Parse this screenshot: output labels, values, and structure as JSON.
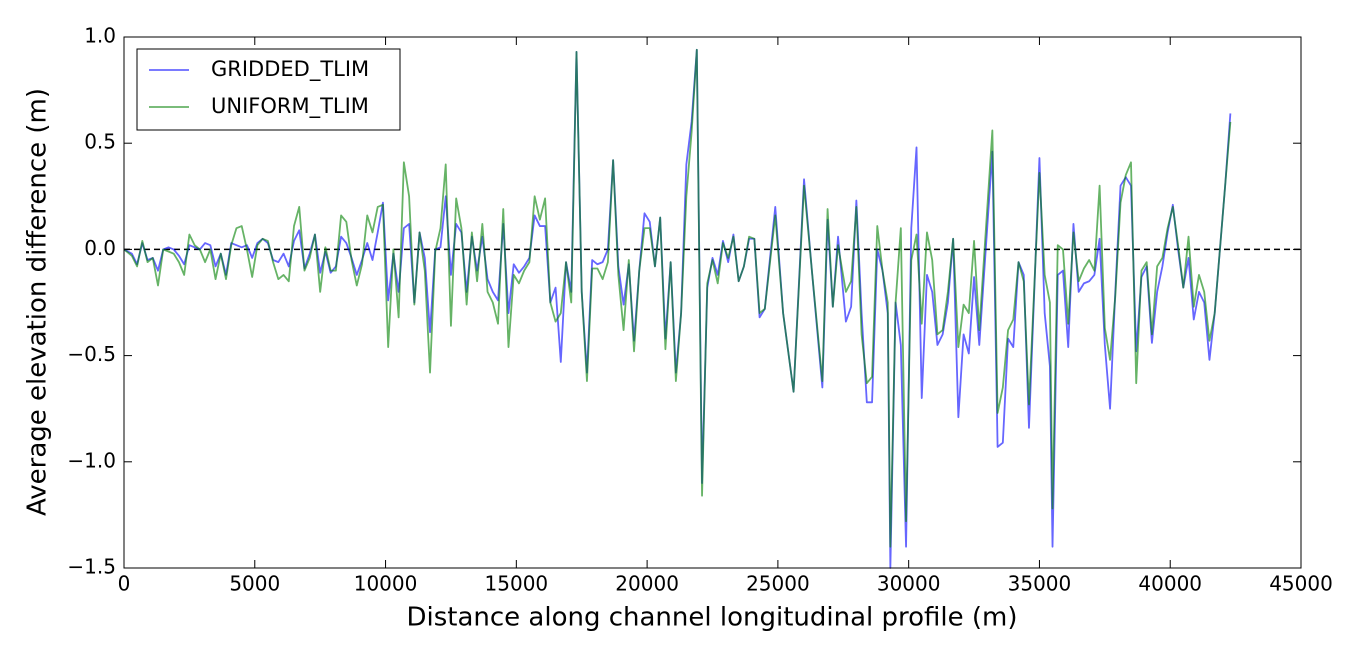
{
  "chart_data": {
    "type": "line",
    "xlabel": "Distance along channel longitudinal profile (m)",
    "ylabel": "Average elevation difference (m)",
    "x": [
      0,
      300,
      500,
      700,
      900,
      1100,
      1300,
      1500,
      1700,
      1900,
      2100,
      2300,
      2500,
      2700,
      2900,
      3100,
      3300,
      3500,
      3700,
      3900,
      4100,
      4300,
      4500,
      4700,
      4900,
      5100,
      5300,
      5500,
      5700,
      5900,
      6100,
      6300,
      6500,
      6700,
      6900,
      7100,
      7300,
      7500,
      7700,
      7900,
      8100,
      8300,
      8500,
      8700,
      8900,
      9100,
      9300,
      9500,
      9700,
      9900,
      10100,
      10300,
      10500,
      10700,
      10900,
      11100,
      11300,
      11500,
      11700,
      11900,
      12100,
      12300,
      12500,
      12700,
      12900,
      13100,
      13300,
      13500,
      13700,
      13900,
      14100,
      14300,
      14500,
      14700,
      14900,
      15100,
      15300,
      15500,
      15700,
      15900,
      16100,
      16300,
      16500,
      16700,
      16900,
      17100,
      17300,
      17500,
      17700,
      17900,
      18100,
      18300,
      18500,
      18700,
      18900,
      19100,
      19300,
      19500,
      19700,
      19900,
      20100,
      20300,
      20500,
      20700,
      20900,
      21100,
      21300,
      21500,
      21700,
      21900,
      22100,
      22300,
      22500,
      22700,
      22900,
      23100,
      23300,
      23500,
      23700,
      23900,
      24100,
      24300,
      24500,
      24900,
      25200,
      25600,
      26000,
      26300,
      26700,
      26900,
      27100,
      27300,
      27600,
      27800,
      28000,
      28200,
      28400,
      28600,
      28800,
      29000,
      29200,
      29300,
      29500,
      29700,
      29900,
      30100,
      30300,
      30500,
      30700,
      30900,
      31100,
      31300,
      31500,
      31700,
      31900,
      32100,
      32300,
      32500,
      32700,
      33200,
      33400,
      33600,
      33800,
      34000,
      34200,
      34400,
      34600,
      35000,
      35200,
      35400,
      35500,
      35700,
      35900,
      36100,
      36300,
      36500,
      36700,
      36900,
      37100,
      37300,
      37500,
      37700,
      37900,
      38100,
      38300,
      38500,
      38700,
      38900,
      39100,
      39300,
      39500,
      39700,
      39900,
      40100,
      40300,
      40500,
      40700,
      40900,
      41100,
      41300,
      41500,
      41700,
      41900,
      42100,
      42300
    ],
    "series": [
      {
        "name": "GRIDDED_TLIM",
        "color": "#0000ff",
        "values": [
          0,
          -0.02,
          -0.07,
          0.03,
          -0.05,
          -0.04,
          -0.1,
          0,
          0.01,
          0,
          -0.03,
          -0.07,
          0.02,
          0.01,
          0,
          0.03,
          0.02,
          -0.08,
          -0.02,
          -0.12,
          0.03,
          0.02,
          0.01,
          0.02,
          -0.04,
          0.03,
          0.05,
          0.03,
          -0.05,
          -0.06,
          -0.02,
          -0.08,
          0.04,
          0.09,
          -0.09,
          -0.02,
          0.07,
          -0.11,
          -0.01,
          -0.11,
          -0.08,
          0.06,
          0.03,
          -0.04,
          -0.12,
          -0.05,
          0.03,
          -0.05,
          0.08,
          0.22,
          -0.24,
          -0.02,
          -0.2,
          0.1,
          0.12,
          -0.25,
          0.08,
          -0.04,
          -0.39,
          0,
          0.01,
          0.25,
          -0.12,
          0.12,
          0.08,
          -0.2,
          0.06,
          -0.1,
          0.06,
          -0.14,
          -0.2,
          -0.24,
          0.12,
          -0.3,
          -0.07,
          -0.11,
          -0.08,
          -0.04,
          0.16,
          0.11,
          0.11,
          -0.25,
          -0.18,
          -0.53,
          -0.06,
          -0.2,
          0.93,
          -0.2,
          -0.58,
          -0.05,
          -0.07,
          -0.06,
          0,
          0.42,
          -0.08,
          -0.26,
          -0.07,
          -0.43,
          -0.1,
          0.17,
          0.13,
          -0.08,
          0.15,
          -0.42,
          -0.06,
          -0.58,
          -0.3,
          0.4,
          0.6,
          0.94,
          -1.1,
          -0.18,
          -0.04,
          -0.12,
          0.04,
          -0.06,
          0.07,
          -0.15,
          -0.08,
          0.05,
          0.05,
          -0.32,
          -0.28,
          0.2,
          -0.3,
          -0.67,
          0.33,
          -0.1,
          -0.65,
          0.14,
          -0.27,
          0.06,
          -0.34,
          -0.27,
          0.23,
          -0.3,
          -0.72,
          -0.72,
          0,
          -0.1,
          -0.3,
          -1.5,
          -0.25,
          -0.45,
          -1.4,
          0.1,
          0.48,
          -0.7,
          -0.12,
          -0.2,
          -0.45,
          -0.4,
          -0.25,
          0.05,
          -0.79,
          -0.4,
          -0.49,
          -0.13,
          -0.45,
          0.46,
          -0.93,
          -0.91,
          -0.42,
          -0.46,
          -0.06,
          -0.12,
          -0.84,
          0.43,
          -0.3,
          -0.55,
          -1.4,
          -0.12,
          -0.1,
          -0.46,
          0.12,
          -0.2,
          -0.16,
          -0.15,
          -0.12,
          0.05,
          -0.45,
          -0.75,
          -0.2,
          0.3,
          0.34,
          0.3,
          -0.48,
          -0.13,
          -0.08,
          -0.44,
          -0.2,
          -0.08,
          0.08,
          0.21,
          0,
          -0.18,
          -0.04,
          -0.33,
          -0.2,
          -0.25,
          -0.52,
          -0.3,
          0,
          0.3,
          0.64
        ]
      },
      {
        "name": "UNIFORM_TLIM",
        "color": "#008000",
        "values": [
          0,
          -0.03,
          -0.08,
          0.04,
          -0.06,
          -0.04,
          -0.17,
          0,
          -0.01,
          -0.02,
          -0.06,
          -0.12,
          0.07,
          0.02,
          0,
          -0.06,
          0,
          -0.14,
          -0.02,
          -0.14,
          0.02,
          0.1,
          0.11,
          0,
          -0.13,
          0.02,
          0.05,
          0.04,
          -0.06,
          -0.14,
          -0.12,
          -0.15,
          0.11,
          0.2,
          -0.1,
          -0.04,
          0.07,
          -0.2,
          0.01,
          -0.1,
          -0.1,
          0.16,
          0.13,
          -0.05,
          -0.17,
          -0.07,
          0.16,
          0.08,
          0.2,
          0.21,
          -0.46,
          0,
          -0.32,
          0.41,
          0.25,
          -0.26,
          0.08,
          -0.1,
          -0.58,
          -0.01,
          0.1,
          0.4,
          -0.36,
          0.24,
          0.1,
          -0.26,
          0.08,
          -0.15,
          0.12,
          -0.2,
          -0.25,
          -0.35,
          0.19,
          -0.46,
          -0.12,
          -0.16,
          -0.1,
          -0.06,
          0.25,
          0.14,
          0.24,
          -0.25,
          -0.34,
          -0.3,
          -0.06,
          -0.25,
          0.93,
          -0.2,
          -0.62,
          -0.09,
          -0.09,
          -0.14,
          -0.06,
          0.42,
          -0.12,
          -0.38,
          -0.05,
          -0.48,
          -0.1,
          0.1,
          0.1,
          -0.08,
          0.15,
          -0.47,
          -0.06,
          -0.62,
          -0.3,
          0.25,
          0.55,
          0.94,
          -1.16,
          -0.16,
          -0.05,
          -0.16,
          0.03,
          -0.04,
          0.06,
          -0.15,
          -0.08,
          0.06,
          0.05,
          -0.3,
          -0.28,
          0.16,
          -0.3,
          -0.67,
          0.3,
          -0.1,
          -0.62,
          0.19,
          -0.27,
          0.02,
          -0.2,
          -0.15,
          0.2,
          -0.4,
          -0.63,
          -0.6,
          0.11,
          -0.1,
          -0.25,
          -1.4,
          -0.25,
          0.1,
          -1.28,
          -0.05,
          0.07,
          -0.35,
          0.08,
          -0.05,
          -0.4,
          -0.38,
          -0.2,
          0.05,
          -0.46,
          -0.26,
          -0.3,
          0.04,
          -0.38,
          0.56,
          -0.77,
          -0.65,
          -0.38,
          -0.33,
          -0.06,
          -0.15,
          -0.73,
          0.36,
          -0.12,
          -0.25,
          -1.22,
          0.02,
          0,
          -0.35,
          0.08,
          -0.15,
          -0.09,
          -0.05,
          -0.1,
          0.3,
          -0.37,
          -0.52,
          -0.22,
          0.22,
          0.35,
          0.41,
          -0.63,
          -0.1,
          -0.06,
          -0.4,
          -0.08,
          -0.04,
          0.1,
          0.2,
          0.02,
          -0.18,
          0.06,
          -0.27,
          -0.12,
          -0.2,
          -0.43,
          -0.3,
          0,
          0.3,
          0.6
        ]
      }
    ],
    "alpha": 0.6,
    "hline": 0,
    "xlim": [
      0,
      45000
    ],
    "xticks": [
      0,
      5000,
      10000,
      15000,
      20000,
      25000,
      30000,
      35000,
      40000,
      45000
    ],
    "ylim": [
      -1.5,
      1.0
    ],
    "yticks": [
      {
        "value": -1.5,
        "label": "−1.5"
      },
      {
        "value": -1.0,
        "label": "−1.0"
      },
      {
        "value": -0.5,
        "label": "−0.5"
      },
      {
        "value": 0,
        "label": "0.0"
      },
      0.5,
      {
        "value": 1.0,
        "label": "1.0"
      }
    ],
    "legend": "upper left"
  }
}
